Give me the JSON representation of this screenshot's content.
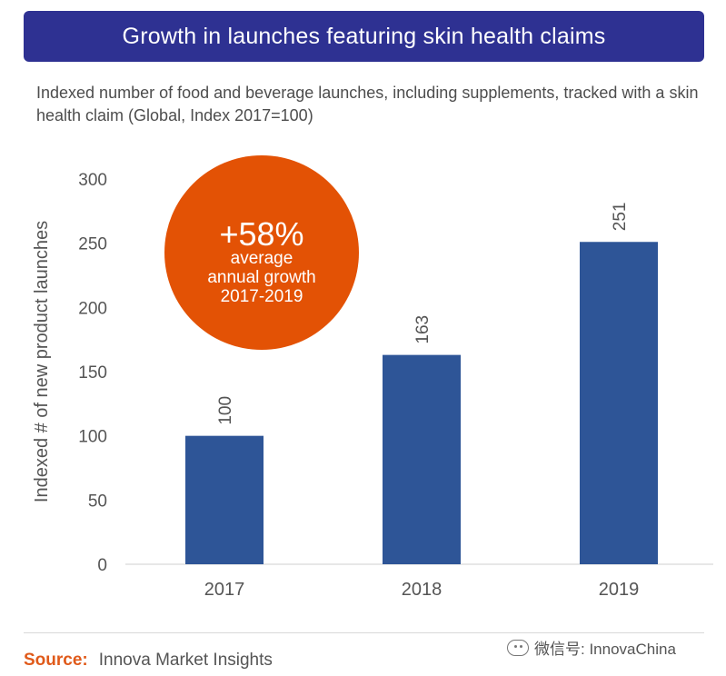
{
  "header": {
    "title": "Growth in launches featuring skin health claims",
    "subtitle": "Indexed number of food and beverage launches, including supplements, tracked with a skin health claim (Global, Index 2017=100)"
  },
  "callout": {
    "big": "+58%",
    "line1": "average",
    "line2": "annual growth",
    "line3": "2017-2019",
    "color": "#e35205"
  },
  "chart_data": {
    "type": "bar",
    "categories": [
      "2017",
      "2018",
      "2019"
    ],
    "values": [
      100,
      163,
      251
    ],
    "ylabel": "Indexed # of new product launches",
    "ylim": [
      0,
      300
    ],
    "yticks": [
      0,
      50,
      100,
      150,
      200,
      250,
      300
    ],
    "grid": false,
    "bar_color": "#2e5597"
  },
  "footer": {
    "source_label": "Source:",
    "source_text": "Innova Market Insights",
    "watermark": "微信号: InnovaChina"
  }
}
